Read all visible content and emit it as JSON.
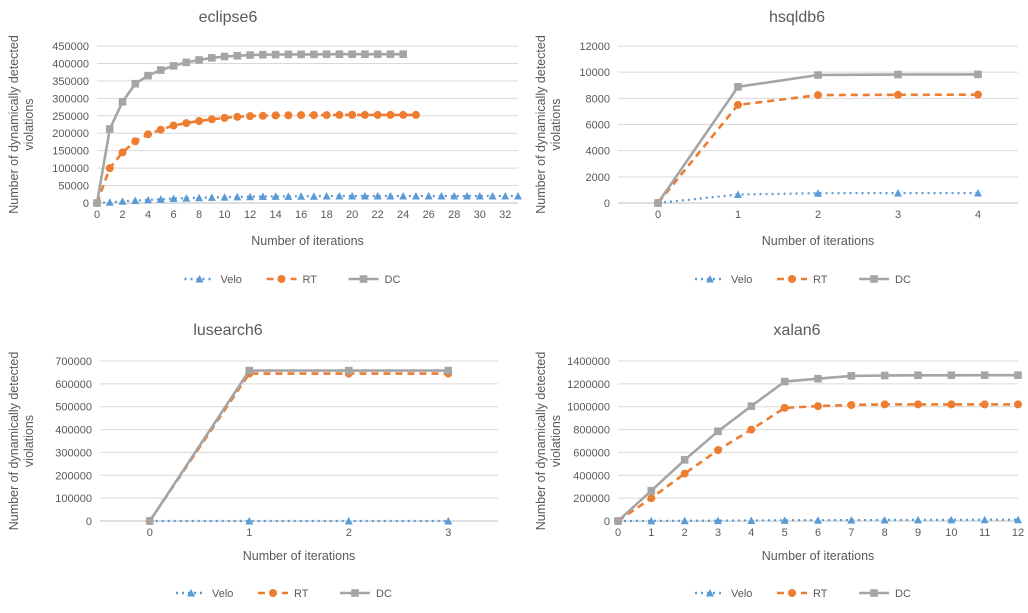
{
  "chart_data": [
    {
      "type": "line",
      "title": "eclipse6",
      "xlabel": "Number of iterations",
      "ylabel": "Number of dynamically detected violations",
      "ylim": [
        0,
        450000
      ],
      "yticks": [
        0,
        50000,
        100000,
        150000,
        200000,
        250000,
        300000,
        350000,
        400000,
        450000
      ],
      "xlim": [
        0,
        33
      ],
      "xticks": [
        0,
        2,
        4,
        6,
        8,
        10,
        12,
        14,
        16,
        18,
        20,
        22,
        24,
        26,
        28,
        30,
        32
      ],
      "grid": "horizontal",
      "legend_position": "bottom",
      "series": [
        {
          "name": "Velo",
          "color": "#5B9BD5",
          "x": [
            0,
            1,
            2,
            3,
            4,
            5,
            6,
            7,
            8,
            9,
            10,
            11,
            12,
            13,
            14,
            15,
            16,
            17,
            18,
            19,
            20,
            21,
            22,
            23,
            24,
            25,
            26,
            27,
            28,
            29,
            30,
            31,
            32,
            33
          ],
          "values": [
            0,
            2000,
            5000,
            7000,
            9000,
            11000,
            13000,
            14000,
            15000,
            16000,
            17000,
            17500,
            18000,
            18500,
            19000,
            19000,
            19500,
            19500,
            20000,
            20000,
            20000,
            20000,
            20000,
            20000,
            20000,
            20000,
            20000,
            20000,
            20000,
            20000,
            20000,
            20000,
            20000,
            20000
          ]
        },
        {
          "name": "RT",
          "color": "#ED7D31",
          "x": [
            0,
            1,
            2,
            3,
            4,
            5,
            6,
            7,
            8,
            9,
            10,
            11,
            12,
            13,
            14,
            15,
            16,
            17,
            18,
            19,
            20,
            21,
            22,
            23,
            24,
            25
          ],
          "values": [
            0,
            100000,
            145000,
            177000,
            197000,
            210000,
            222000,
            229000,
            235000,
            240000,
            244000,
            247000,
            249000,
            250000,
            251000,
            251500,
            252000,
            252000,
            252000,
            252500,
            252500,
            252500,
            252500,
            252500,
            252500,
            252500
          ]
        },
        {
          "name": "DC",
          "color": "#A5A5A5",
          "x": [
            0,
            1,
            2,
            3,
            4,
            5,
            6,
            7,
            8,
            9,
            10,
            11,
            12,
            13,
            14,
            15,
            16,
            17,
            18,
            19,
            20,
            21,
            22,
            23,
            24
          ],
          "values": [
            0,
            212000,
            290000,
            342000,
            365000,
            381000,
            393000,
            403000,
            410000,
            416000,
            420000,
            422000,
            424000,
            425000,
            425500,
            426000,
            426000,
            426000,
            426500,
            426500,
            426500,
            426500,
            426500,
            426500,
            426500
          ]
        }
      ]
    },
    {
      "type": "line",
      "title": "hsqldb6",
      "xlabel": "Number of iterations",
      "ylabel": "Number of dynamically detected violations",
      "ylim": [
        0,
        12000
      ],
      "yticks": [
        0,
        2000,
        4000,
        6000,
        8000,
        10000,
        12000
      ],
      "xlim": [
        -0.5,
        4.5
      ],
      "xticks": [
        0,
        1,
        2,
        3,
        4
      ],
      "grid": "horizontal",
      "legend_position": "bottom",
      "series": [
        {
          "name": "Velo",
          "color": "#5B9BD5",
          "x": [
            0,
            1,
            2,
            3,
            4
          ],
          "values": [
            0,
            650,
            750,
            760,
            760
          ]
        },
        {
          "name": "RT",
          "color": "#ED7D31",
          "x": [
            0,
            1,
            2,
            3,
            4
          ],
          "values": [
            0,
            7500,
            8250,
            8270,
            8280
          ]
        },
        {
          "name": "DC",
          "color": "#A5A5A5",
          "x": [
            0,
            1,
            2,
            3,
            4
          ],
          "values": [
            0,
            8880,
            9780,
            9820,
            9830
          ]
        }
      ]
    },
    {
      "type": "line",
      "title": "lusearch6",
      "xlabel": "Number of iterations",
      "ylabel": "Number of dynamically detected violations",
      "ylim": [
        0,
        700000
      ],
      "yticks": [
        0,
        100000,
        200000,
        300000,
        400000,
        500000,
        600000,
        700000
      ],
      "xlim": [
        -0.5,
        3.5
      ],
      "xticks": [
        0,
        1,
        2,
        3
      ],
      "grid": "horizontal",
      "legend_position": "bottom",
      "series": [
        {
          "name": "Velo",
          "color": "#5B9BD5",
          "x": [
            0,
            1,
            2,
            3
          ],
          "values": [
            0,
            0,
            0,
            0
          ]
        },
        {
          "name": "RT",
          "color": "#ED7D31",
          "x": [
            0,
            1,
            2,
            3
          ],
          "values": [
            0,
            645000,
            645000,
            645000
          ]
        },
        {
          "name": "DC",
          "color": "#A5A5A5",
          "x": [
            0,
            1,
            2,
            3
          ],
          "values": [
            0,
            658000,
            658000,
            658000
          ]
        }
      ]
    },
    {
      "type": "line",
      "title": "xalan6",
      "xlabel": "Number of iterations",
      "ylabel": "Number of dynamically detected violations",
      "ylim": [
        0,
        1400000
      ],
      "yticks": [
        0,
        200000,
        400000,
        600000,
        800000,
        1000000,
        1200000,
        1400000
      ],
      "xlim": [
        0,
        12
      ],
      "xticks": [
        0,
        1,
        2,
        3,
        4,
        5,
        6,
        7,
        8,
        9,
        10,
        11,
        12
      ],
      "grid": "horizontal",
      "legend_position": "bottom",
      "series": [
        {
          "name": "Velo",
          "color": "#5B9BD5",
          "x": [
            0,
            1,
            2,
            3,
            4,
            5,
            6,
            7,
            8,
            9,
            10,
            11,
            12
          ],
          "values": [
            0,
            1000,
            2000,
            3000,
            4000,
            6000,
            7000,
            8000,
            9000,
            10000,
            10000,
            11000,
            11000
          ]
        },
        {
          "name": "RT",
          "color": "#ED7D31",
          "x": [
            0,
            1,
            2,
            3,
            4,
            5,
            6,
            7,
            8,
            9,
            10,
            11,
            12
          ],
          "values": [
            0,
            200000,
            415000,
            620000,
            800000,
            990000,
            1005000,
            1015000,
            1020000,
            1020000,
            1020000,
            1020000,
            1020000
          ]
        },
        {
          "name": "DC",
          "color": "#A5A5A5",
          "x": [
            0,
            1,
            2,
            3,
            4,
            5,
            6,
            7,
            8,
            9,
            10,
            11,
            12
          ],
          "values": [
            0,
            265000,
            535000,
            785000,
            1005000,
            1220000,
            1245000,
            1270000,
            1273000,
            1275000,
            1275000,
            1276000,
            1276000
          ]
        }
      ]
    }
  ]
}
